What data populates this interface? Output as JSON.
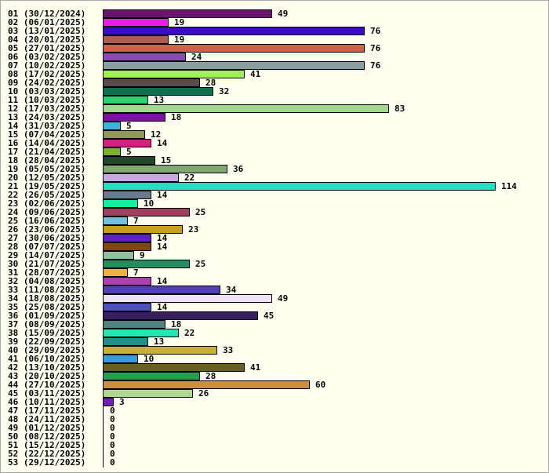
{
  "chart_data": {
    "type": "bar",
    "orientation": "horizontal",
    "title": "",
    "xlabel": "",
    "ylabel": "",
    "xlim": [
      0,
      114
    ],
    "grid": false,
    "legend": "none",
    "categories": [
      "01 (30/12/2024)",
      "02 (06/01/2025)",
      "03 (13/01/2025)",
      "04 (20/01/2025)",
      "05 (27/01/2025)",
      "06 (03/02/2025)",
      "07 (10/02/2025)",
      "08 (17/02/2025)",
      "09 (24/02/2025)",
      "10 (03/03/2025)",
      "11 (10/03/2025)",
      "12 (17/03/2025)",
      "13 (24/03/2025)",
      "14 (31/03/2025)",
      "15 (07/04/2025)",
      "16 (14/04/2025)",
      "17 (21/04/2025)",
      "18 (28/04/2025)",
      "19 (05/05/2025)",
      "20 (12/05/2025)",
      "21 (19/05/2025)",
      "22 (26/05/2025)",
      "23 (02/06/2025)",
      "24 (09/06/2025)",
      "25 (16/06/2025)",
      "26 (23/06/2025)",
      "27 (30/06/2025)",
      "28 (07/07/2025)",
      "29 (14/07/2025)",
      "30 (21/07/2025)",
      "31 (28/07/2025)",
      "32 (04/08/2025)",
      "33 (11/08/2025)",
      "34 (18/08/2025)",
      "35 (25/08/2025)",
      "36 (01/09/2025)",
      "37 (08/09/2025)",
      "38 (15/09/2025)",
      "39 (22/09/2025)",
      "40 (29/09/2025)",
      "41 (06/10/2025)",
      "42 (13/10/2025)",
      "43 (20/10/2025)",
      "44 (27/10/2025)",
      "45 (03/11/2025)",
      "46 (10/11/2025)",
      "47 (17/11/2025)",
      "48 (24/11/2025)",
      "49 (01/12/2025)",
      "50 (08/12/2025)",
      "51 (15/12/2025)",
      "52 (22/12/2025)",
      "53 (29/12/2025)"
    ],
    "values": [
      49,
      19,
      76,
      19,
      76,
      24,
      76,
      41,
      28,
      32,
      13,
      83,
      18,
      5,
      12,
      14,
      5,
      15,
      36,
      22,
      114,
      14,
      10,
      25,
      7,
      23,
      14,
      14,
      9,
      25,
      7,
      14,
      34,
      49,
      14,
      45,
      18,
      22,
      13,
      33,
      10,
      41,
      28,
      60,
      26,
      3,
      0,
      0,
      0,
      0,
      0,
      0,
      0
    ],
    "colors": [
      "#6a1470",
      "#e81ee8",
      "#3a0cc8",
      "#b05a50",
      "#d0604a",
      "#8a4ab8",
      "#8aa0a0",
      "#a0f050",
      "#5a4a50",
      "#107050",
      "#30d070",
      "#a0d890",
      "#8010a0",
      "#40b0e0",
      "#909858",
      "#d02080",
      "#80b030",
      "#204828",
      "#80a870",
      "#c8a8e0",
      "#20e0c0",
      "#707890",
      "#10f0a0",
      "#a04060",
      "#70c0e0",
      "#c8a020",
      "#6020c8",
      "#804810",
      "#90c0a0",
      "#209060",
      "#f0b040",
      "#b040b0",
      "#5040b0",
      "#f0e0f8",
      "#5050c0",
      "#382060",
      "#508080",
      "#20e8b0",
      "#209088",
      "#c8b030",
      "#30a0e0",
      "#686020",
      "#20a050",
      "#c89040",
      "#b0d890",
      "#7020b0",
      "#888888",
      "#888888",
      "#888888",
      "#888888",
      "#888888",
      "#888888",
      "#888888"
    ]
  }
}
